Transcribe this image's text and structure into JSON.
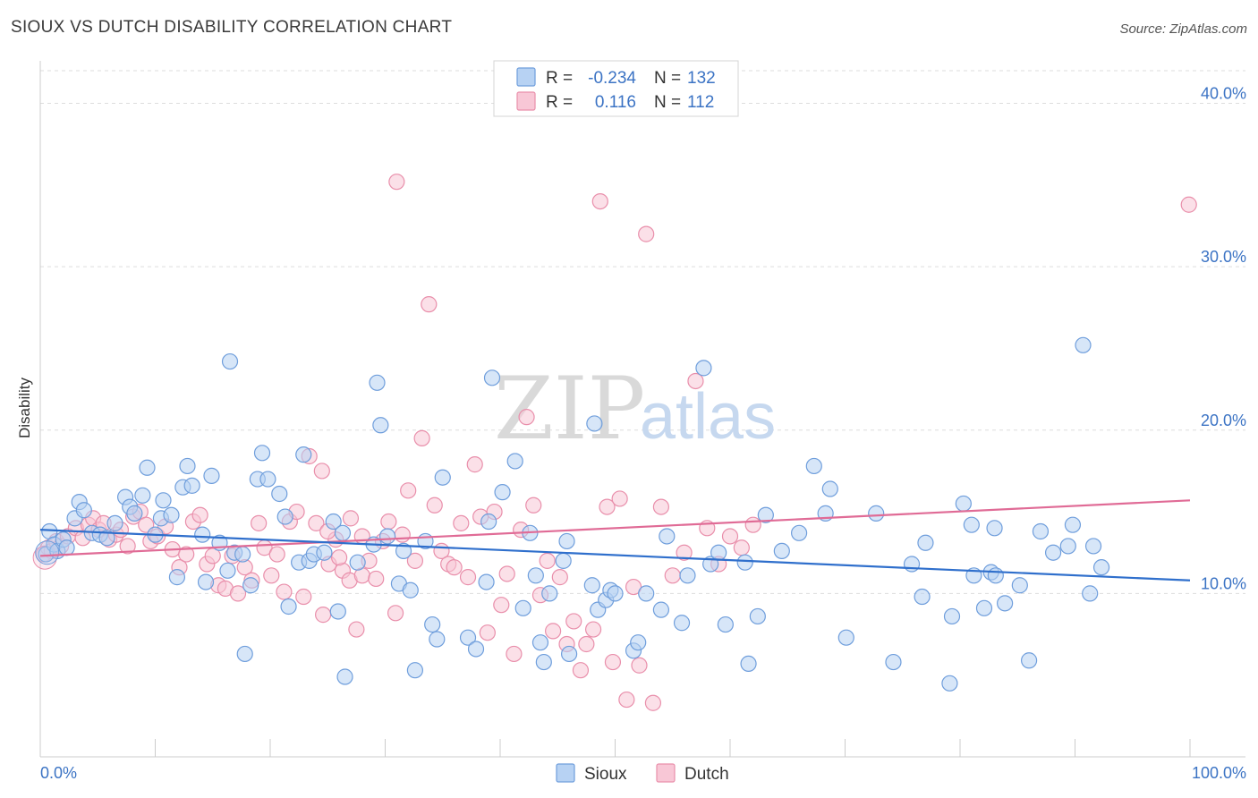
{
  "title": "SIOUX VS DUTCH DISABILITY CORRELATION CHART",
  "source": "Source: ZipAtlas.com",
  "watermark": {
    "zip": "ZIP",
    "atlas": "atlas"
  },
  "legend_box": {
    "rows": [
      {
        "r_label": "R =",
        "r_value": "-0.234",
        "n_label": "N =",
        "n_value": "132"
      },
      {
        "r_label": "R =",
        "r_value": "0.116",
        "n_label": "N =",
        "n_value": "112"
      }
    ]
  },
  "bottom_legend": [
    "Sioux",
    "Dutch"
  ],
  "colors": {
    "sioux_fill": "#b7d2f3",
    "sioux_stroke": "#6f9edc",
    "sioux_line": "#2f6fcc",
    "dutch_fill": "#f8c7d6",
    "dutch_stroke": "#e98fab",
    "dutch_line": "#e06b96",
    "tick_label": "#3b73c4",
    "grid": "#dddddd"
  },
  "chart_data": {
    "type": "scatter",
    "title": "SIOUX VS DUTCH DISABILITY CORRELATION CHART",
    "xlabel": "",
    "ylabel": "Disability",
    "xlim": [
      0,
      100
    ],
    "ylim": [
      0,
      42
    ],
    "y_ticks": [
      10,
      20,
      30,
      40
    ],
    "y_tick_labels": [
      "10.0%",
      "20.0%",
      "30.0%",
      "40.0%"
    ],
    "x_tick_labels": [
      "0.0%",
      "100.0%"
    ],
    "grid": true,
    "series": [
      {
        "name": "Sioux",
        "R": -0.234,
        "N": 132,
        "trend": [
          [
            0,
            13.9
          ],
          [
            100,
            10.8
          ]
        ],
        "points": [
          [
            0.5,
            12.4
          ],
          [
            0.8,
            13.8
          ],
          [
            1.2,
            13.0
          ],
          [
            1.5,
            12.6
          ],
          [
            2.0,
            13.3
          ],
          [
            2.3,
            12.8
          ],
          [
            3.0,
            14.6
          ],
          [
            3.4,
            15.6
          ],
          [
            3.8,
            15.1
          ],
          [
            4.5,
            13.7
          ],
          [
            5.2,
            13.6
          ],
          [
            5.8,
            13.4
          ],
          [
            6.5,
            14.3
          ],
          [
            7.4,
            15.9
          ],
          [
            7.8,
            15.3
          ],
          [
            8.2,
            14.9
          ],
          [
            8.9,
            16.0
          ],
          [
            9.3,
            17.7
          ],
          [
            10.0,
            13.6
          ],
          [
            10.5,
            14.6
          ],
          [
            10.7,
            15.7
          ],
          [
            11.4,
            14.8
          ],
          [
            11.9,
            11.0
          ],
          [
            12.4,
            16.5
          ],
          [
            12.8,
            17.8
          ],
          [
            13.2,
            16.6
          ],
          [
            14.1,
            13.6
          ],
          [
            14.4,
            10.7
          ],
          [
            14.9,
            17.2
          ],
          [
            15.6,
            13.1
          ],
          [
            16.3,
            11.4
          ],
          [
            16.5,
            24.2
          ],
          [
            16.9,
            12.5
          ],
          [
            17.6,
            12.4
          ],
          [
            17.8,
            6.3
          ],
          [
            18.3,
            10.5
          ],
          [
            18.9,
            17.0
          ],
          [
            19.3,
            18.6
          ],
          [
            19.8,
            17.0
          ],
          [
            20.8,
            16.1
          ],
          [
            21.3,
            14.7
          ],
          [
            21.6,
            9.2
          ],
          [
            22.5,
            11.9
          ],
          [
            22.9,
            18.5
          ],
          [
            23.4,
            12.0
          ],
          [
            23.8,
            12.4
          ],
          [
            24.7,
            12.5
          ],
          [
            25.5,
            14.4
          ],
          [
            25.9,
            8.9
          ],
          [
            26.3,
            13.7
          ],
          [
            26.5,
            4.9
          ],
          [
            27.6,
            11.9
          ],
          [
            29.0,
            13.0
          ],
          [
            29.3,
            22.9
          ],
          [
            29.6,
            20.3
          ],
          [
            30.2,
            13.5
          ],
          [
            31.2,
            10.6
          ],
          [
            31.6,
            12.6
          ],
          [
            32.2,
            10.2
          ],
          [
            32.6,
            5.3
          ],
          [
            33.5,
            13.2
          ],
          [
            34.1,
            8.1
          ],
          [
            34.5,
            7.2
          ],
          [
            35.0,
            17.1
          ],
          [
            37.2,
            7.3
          ],
          [
            37.9,
            6.6
          ],
          [
            38.8,
            10.7
          ],
          [
            39.0,
            14.4
          ],
          [
            39.3,
            23.2
          ],
          [
            40.2,
            16.2
          ],
          [
            41.3,
            18.1
          ],
          [
            42.0,
            9.1
          ],
          [
            42.6,
            13.7
          ],
          [
            43.1,
            11.1
          ],
          [
            43.5,
            7.0
          ],
          [
            43.8,
            5.8
          ],
          [
            44.3,
            10.0
          ],
          [
            45.5,
            12.0
          ],
          [
            45.8,
            13.2
          ],
          [
            46.0,
            6.3
          ],
          [
            48.0,
            10.5
          ],
          [
            48.2,
            20.4
          ],
          [
            48.5,
            9.0
          ],
          [
            49.2,
            9.6
          ],
          [
            49.6,
            10.2
          ],
          [
            50.0,
            10.0
          ],
          [
            51.6,
            6.5
          ],
          [
            52.0,
            7.0
          ],
          [
            52.7,
            10.0
          ],
          [
            54.0,
            9.0
          ],
          [
            54.5,
            13.5
          ],
          [
            55.8,
            8.2
          ],
          [
            56.3,
            11.1
          ],
          [
            57.7,
            23.8
          ],
          [
            58.3,
            11.8
          ],
          [
            59.0,
            12.5
          ],
          [
            59.6,
            8.1
          ],
          [
            61.3,
            11.9
          ],
          [
            61.6,
            5.7
          ],
          [
            62.4,
            8.6
          ],
          [
            63.1,
            14.8
          ],
          [
            64.5,
            12.6
          ],
          [
            66.0,
            13.7
          ],
          [
            67.3,
            17.8
          ],
          [
            68.3,
            14.9
          ],
          [
            68.7,
            16.4
          ],
          [
            70.1,
            7.3
          ],
          [
            72.7,
            14.9
          ],
          [
            74.2,
            5.8
          ],
          [
            75.8,
            11.8
          ],
          [
            76.7,
            9.8
          ],
          [
            77.0,
            13.1
          ],
          [
            79.1,
            4.5
          ],
          [
            79.3,
            8.6
          ],
          [
            80.3,
            15.5
          ],
          [
            81.0,
            14.2
          ],
          [
            81.2,
            11.1
          ],
          [
            82.1,
            9.1
          ],
          [
            82.7,
            11.3
          ],
          [
            83.0,
            14.0
          ],
          [
            83.1,
            11.1
          ],
          [
            83.9,
            9.4
          ],
          [
            85.2,
            10.5
          ],
          [
            86.0,
            5.9
          ],
          [
            87.0,
            13.8
          ],
          [
            88.1,
            12.5
          ],
          [
            89.4,
            12.9
          ],
          [
            89.8,
            14.2
          ],
          [
            90.7,
            25.2
          ],
          [
            91.3,
            10.0
          ],
          [
            91.6,
            12.9
          ],
          [
            92.3,
            11.6
          ]
        ]
      },
      {
        "name": "Dutch",
        "R": 0.116,
        "N": 112,
        "trend": [
          [
            0,
            12.3
          ],
          [
            100,
            15.7
          ]
        ],
        "points": [
          [
            0.3,
            12.4
          ],
          [
            0.7,
            12.8
          ],
          [
            1.0,
            12.6
          ],
          [
            1.4,
            13.2
          ],
          [
            1.8,
            12.9
          ],
          [
            2.4,
            13.5
          ],
          [
            3.1,
            14.0
          ],
          [
            3.7,
            13.4
          ],
          [
            4.2,
            14.2
          ],
          [
            4.6,
            14.6
          ],
          [
            5.1,
            13.9
          ],
          [
            5.5,
            14.3
          ],
          [
            6.0,
            13.3
          ],
          [
            6.6,
            13.6
          ],
          [
            7.0,
            13.9
          ],
          [
            7.6,
            12.9
          ],
          [
            8.1,
            14.7
          ],
          [
            8.7,
            15.0
          ],
          [
            9.2,
            14.2
          ],
          [
            9.6,
            13.2
          ],
          [
            10.2,
            13.5
          ],
          [
            10.9,
            14.1
          ],
          [
            11.5,
            12.7
          ],
          [
            12.1,
            11.6
          ],
          [
            12.7,
            12.4
          ],
          [
            13.3,
            14.4
          ],
          [
            13.9,
            14.8
          ],
          [
            14.5,
            11.8
          ],
          [
            15.0,
            12.3
          ],
          [
            15.5,
            10.5
          ],
          [
            16.1,
            10.3
          ],
          [
            16.7,
            12.3
          ],
          [
            17.2,
            10.0
          ],
          [
            17.8,
            11.6
          ],
          [
            18.4,
            10.8
          ],
          [
            19.0,
            14.3
          ],
          [
            19.5,
            12.8
          ],
          [
            20.1,
            11.1
          ],
          [
            20.6,
            12.4
          ],
          [
            21.2,
            10.1
          ],
          [
            21.7,
            14.4
          ],
          [
            22.3,
            15.0
          ],
          [
            22.9,
            9.8
          ],
          [
            23.4,
            18.4
          ],
          [
            24.0,
            14.3
          ],
          [
            24.6,
            8.7
          ],
          [
            25.1,
            11.8
          ],
          [
            25.7,
            13.3
          ],
          [
            26.3,
            11.4
          ],
          [
            26.9,
            10.8
          ],
          [
            27.5,
            7.8
          ],
          [
            28.0,
            11.1
          ],
          [
            28.6,
            12.0
          ],
          [
            29.2,
            10.9
          ],
          [
            29.8,
            13.2
          ],
          [
            30.3,
            14.4
          ],
          [
            30.9,
            8.8
          ],
          [
            31.5,
            13.6
          ],
          [
            32.0,
            16.3
          ],
          [
            32.6,
            12.0
          ],
          [
            33.2,
            19.5
          ],
          [
            33.8,
            27.7
          ],
          [
            34.3,
            15.4
          ],
          [
            34.9,
            12.6
          ],
          [
            35.5,
            11.8
          ],
          [
            36.0,
            11.6
          ],
          [
            36.6,
            14.3
          ],
          [
            37.2,
            11.0
          ],
          [
            37.8,
            17.9
          ],
          [
            38.3,
            14.7
          ],
          [
            38.9,
            7.6
          ],
          [
            39.5,
            15.0
          ],
          [
            40.1,
            9.3
          ],
          [
            40.6,
            11.2
          ],
          [
            41.2,
            6.3
          ],
          [
            41.8,
            13.9
          ],
          [
            42.3,
            20.8
          ],
          [
            42.9,
            15.4
          ],
          [
            43.5,
            9.9
          ],
          [
            44.1,
            12.0
          ],
          [
            44.6,
            7.7
          ],
          [
            45.2,
            11.0
          ],
          [
            45.8,
            6.9
          ],
          [
            46.4,
            8.3
          ],
          [
            47.0,
            5.3
          ],
          [
            47.5,
            6.9
          ],
          [
            48.1,
            7.8
          ],
          [
            48.7,
            34.0
          ],
          [
            49.3,
            15.3
          ],
          [
            49.8,
            5.8
          ],
          [
            50.4,
            15.8
          ],
          [
            51.0,
            3.5
          ],
          [
            51.6,
            10.4
          ],
          [
            52.1,
            5.6
          ],
          [
            52.7,
            32.0
          ],
          [
            53.3,
            3.3
          ],
          [
            54.0,
            15.3
          ],
          [
            55.0,
            11.1
          ],
          [
            56.0,
            12.5
          ],
          [
            57.0,
            23.0
          ],
          [
            58.0,
            14.0
          ],
          [
            59.0,
            11.8
          ],
          [
            60.0,
            13.5
          ],
          [
            61.0,
            12.8
          ],
          [
            62.0,
            14.2
          ],
          [
            31.0,
            35.2
          ],
          [
            28.0,
            13.5
          ],
          [
            27.0,
            14.6
          ],
          [
            26.0,
            12.2
          ],
          [
            25.0,
            13.8
          ],
          [
            24.5,
            17.5
          ],
          [
            99.9,
            33.8
          ]
        ]
      }
    ]
  }
}
